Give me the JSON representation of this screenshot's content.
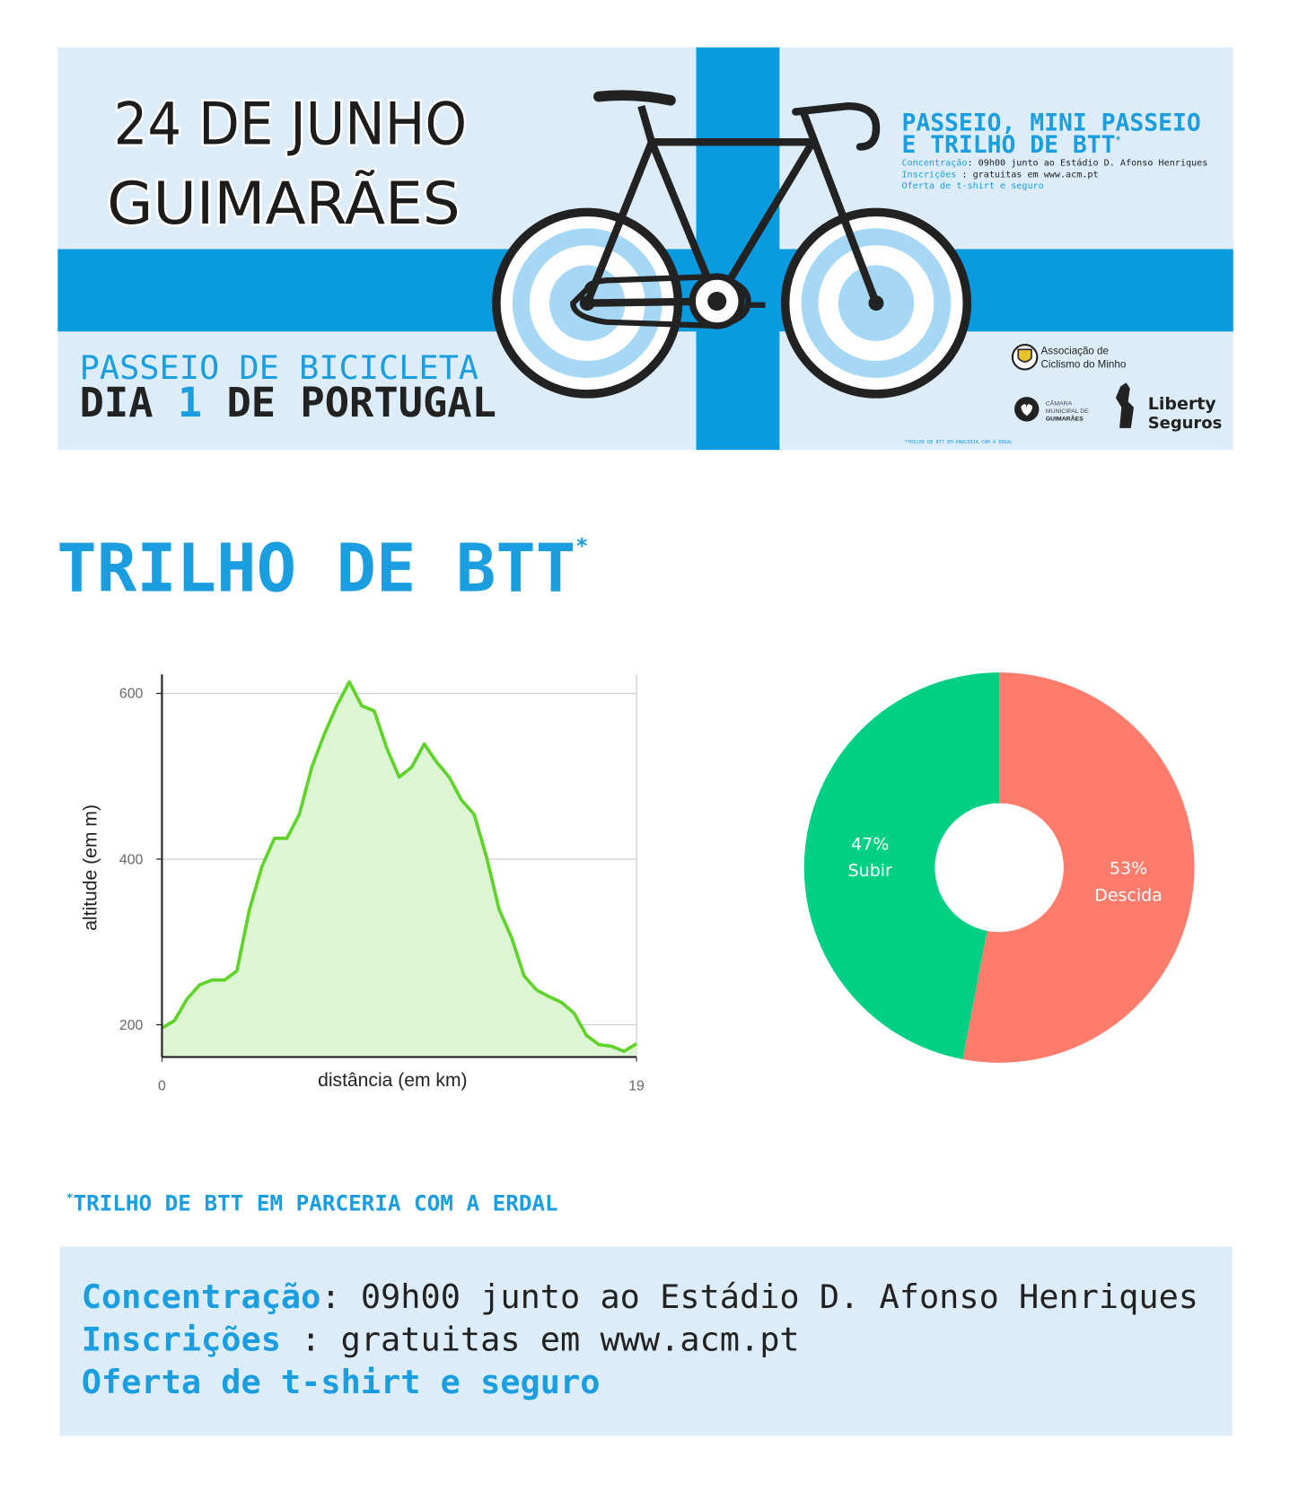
{
  "banner": {
    "date": "24 DE JUNHO",
    "city": "GUIMARÃES",
    "event": "PASSEIO DE BICICLETA",
    "day_parts": [
      "DIA ",
      "1",
      " DE PORTUGAL"
    ],
    "rides_line1": "PASSEIO, MINI PASSEIO",
    "rides_line2": "E TRILHO DE BTT",
    "rides_mark": "*",
    "info": [
      {
        "label": "Concentração",
        "text": ": 09h00 junto ao Estádio D. Afonso Henriques"
      },
      {
        "label": "Inscrições",
        "text": " : gratuitas em www.acm.pt"
      },
      {
        "label": "Oferta de t-shirt e seguro"
      }
    ],
    "partner1": [
      "Associação de",
      "Ciclismo do Minho"
    ],
    "partner2": [
      "CÂMARA",
      "MUNICIPAL DE",
      "GUIMARÃES"
    ],
    "partner3": [
      "Liberty",
      "Seguros"
    ],
    "footnote": "*TRILHO DE BTT EM PARCERIA COM A ERDAL"
  },
  "section": {
    "title": "TRILHO DE BTT",
    "mark": "*"
  },
  "chart_data": [
    {
      "type": "area",
      "xlabel": "distância (em km)",
      "ylabel": "altitude (em m)",
      "x": [
        0,
        0.5,
        1,
        1.5,
        2,
        2.5,
        3,
        3.5,
        4,
        4.5,
        5,
        5.5,
        6,
        6.5,
        7,
        7.5,
        8,
        8.5,
        9,
        9.5,
        10,
        10.5,
        11,
        11.5,
        12,
        12.5,
        13,
        13.5,
        14,
        14.5,
        15,
        15.5,
        16,
        16.5,
        17,
        17.5,
        18,
        18.5,
        19
      ],
      "values": [
        196,
        205,
        231,
        248,
        254,
        254,
        265,
        339,
        391,
        425,
        425,
        454,
        511,
        551,
        585,
        614,
        585,
        579,
        534,
        499,
        511,
        539,
        517,
        499,
        471,
        454,
        402,
        339,
        305,
        259,
        242,
        234,
        227,
        214,
        187,
        176,
        174,
        168,
        177
      ],
      "color": "#5fd32a",
      "fill_color": "#dcf5d2",
      "xlim": [
        0,
        19
      ],
      "xticks": [
        0,
        19
      ],
      "ylim": [
        161,
        623
      ],
      "yticks": [
        200,
        400,
        600
      ],
      "grid": true
    },
    {
      "type": "pie",
      "categories": [
        "Subir",
        "Descida"
      ],
      "values": [
        47,
        53
      ],
      "value_labels": [
        "47%",
        "53%"
      ],
      "colors": [
        "#00d084",
        "#ff7b6b"
      ]
    }
  ],
  "footnote": {
    "mark": "*",
    "text": "TRILHO DE BTT EM PARCERIA COM A ERDAL"
  },
  "info": [
    {
      "label": "Concentração",
      "text": ": 09h00 junto ao Estádio D. Afonso Henriques"
    },
    {
      "label": "Inscrições",
      "text": " : gratuitas em www.acm.pt"
    },
    {
      "label": "Oferta de t-shirt e seguro"
    }
  ]
}
